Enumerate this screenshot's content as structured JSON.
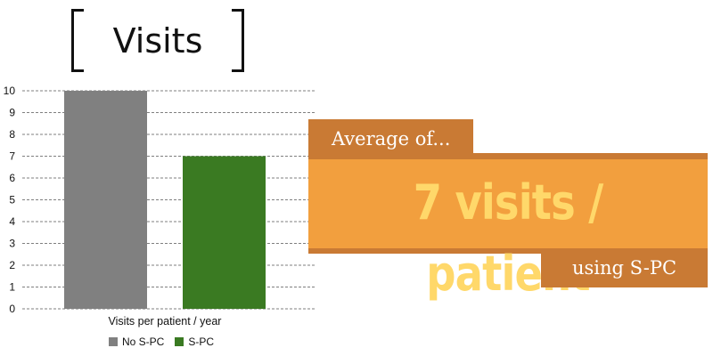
{
  "title": "Visits",
  "banner": {
    "lead": "Average of...",
    "headline": "7 visits / patient",
    "tail": "using S-PC"
  },
  "colors": {
    "no_spc": "#808080",
    "spc": "#3a7a22",
    "banner_dark": "#c97a34",
    "banner_light": "#f29f3e",
    "headline_text": "#ffd86a"
  },
  "chart_data": {
    "type": "bar",
    "categories": [
      "Visits per patient / year"
    ],
    "series": [
      {
        "name": "No S-PC",
        "values": [
          10
        ],
        "color": "#808080"
      },
      {
        "name": "S-PC",
        "values": [
          7
        ],
        "color": "#3a7a22"
      }
    ],
    "xlabel": "Visits per patient / year",
    "ylabel": "",
    "ylim": [
      0,
      10
    ],
    "yticks": [
      0,
      1,
      2,
      3,
      4,
      5,
      6,
      7,
      8,
      9,
      10
    ],
    "grid": true,
    "legend": "bottom"
  }
}
